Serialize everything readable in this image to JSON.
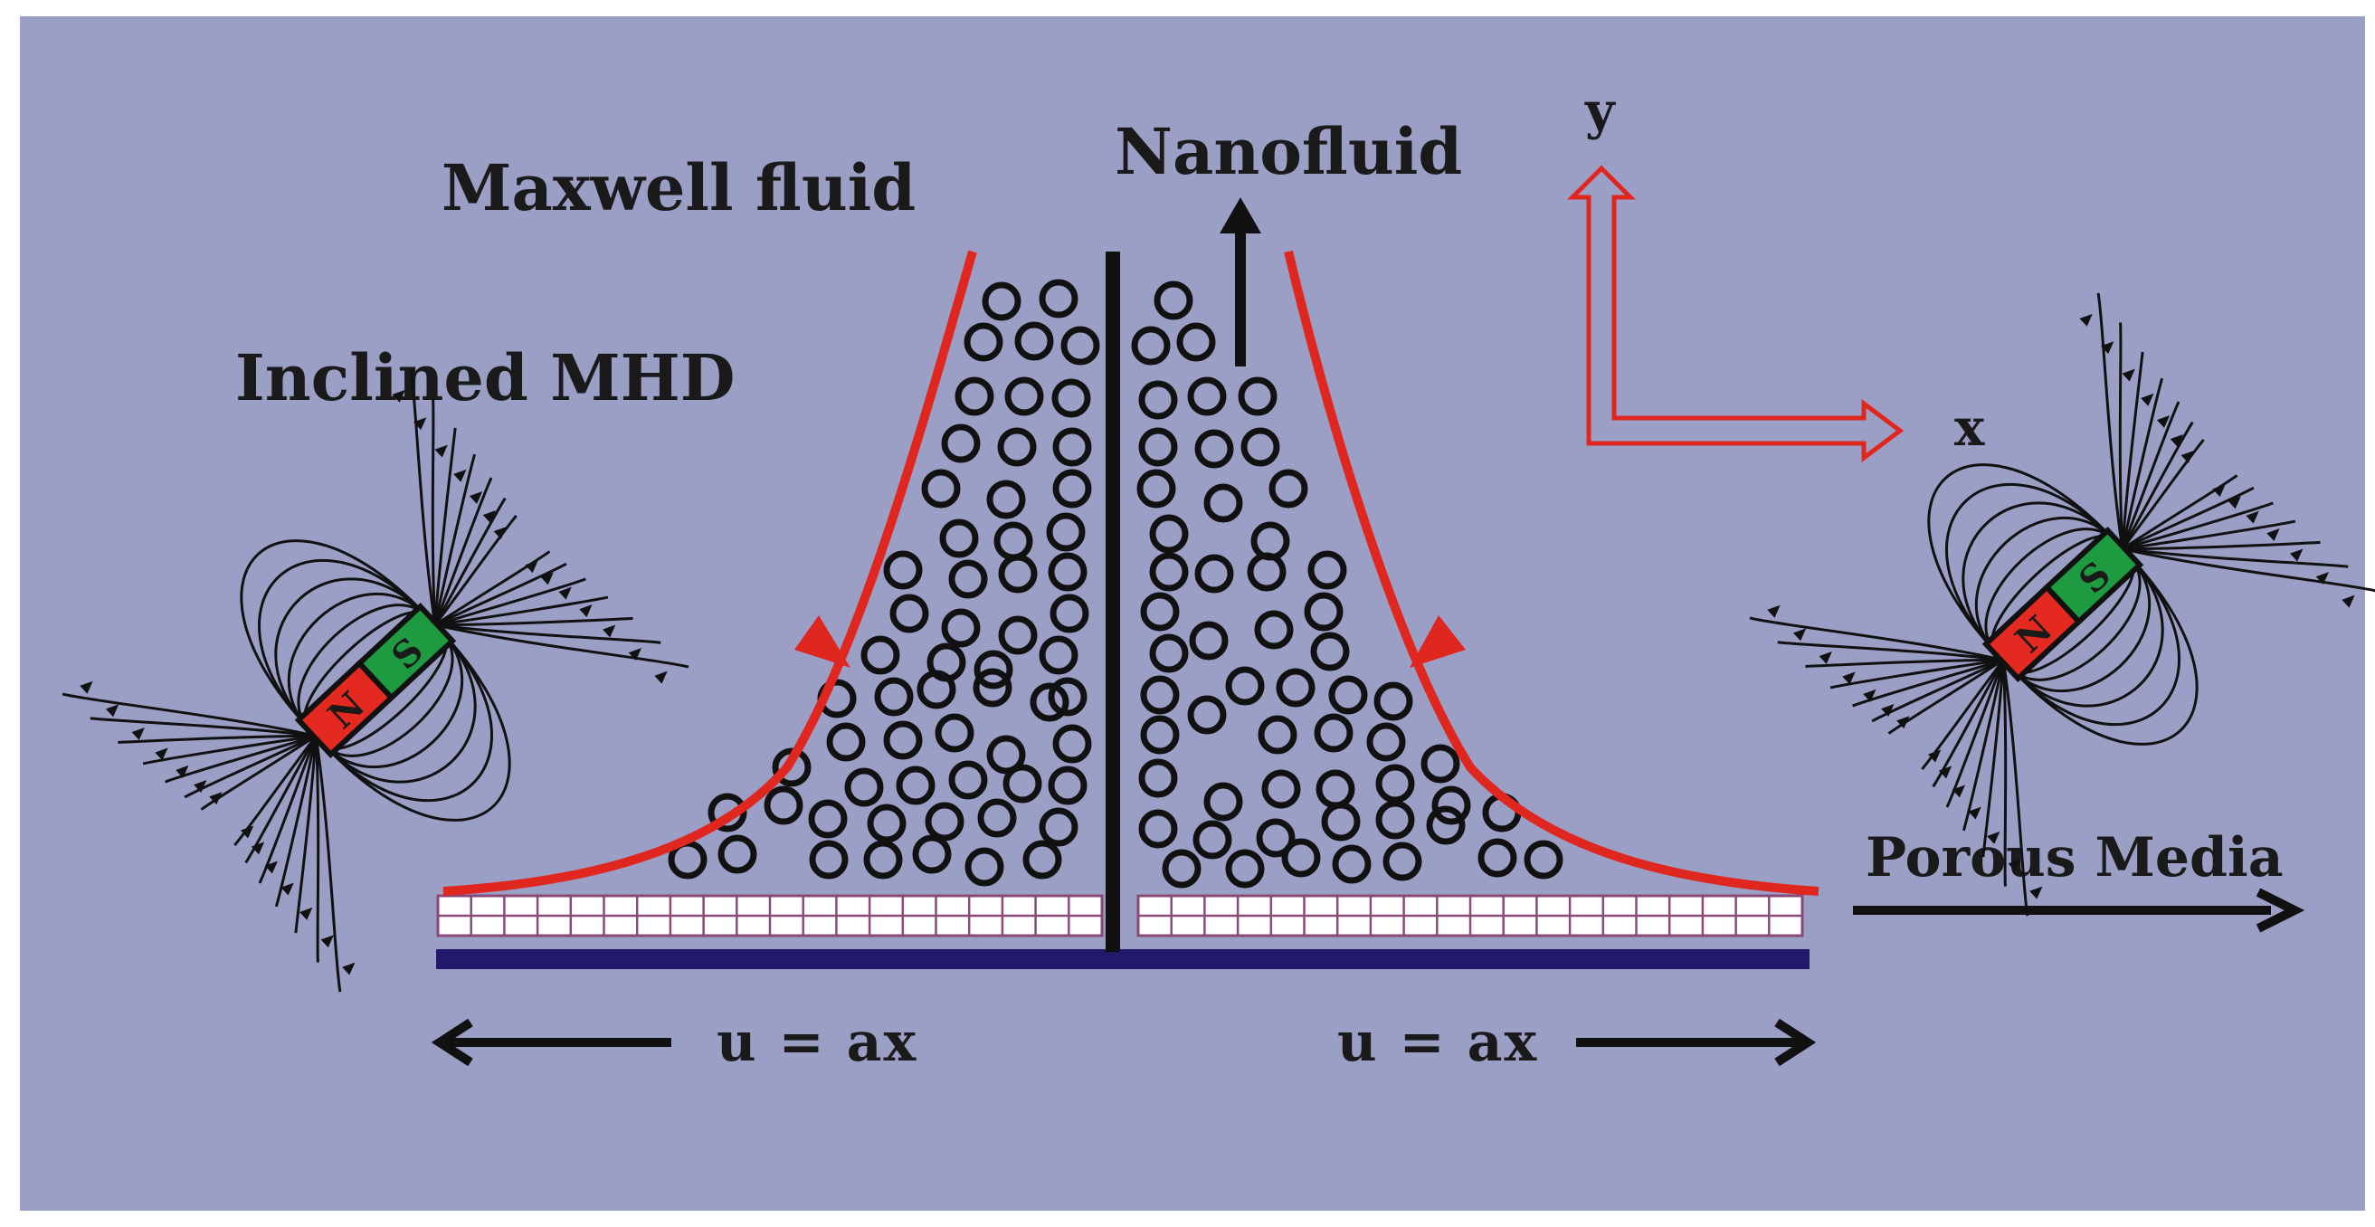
{
  "labels": {
    "maxwell": "Maxwell fluid",
    "nanofluid": "Nanofluid",
    "mhd": "Inclined MHD",
    "porous": "Porous Media",
    "u_left": "u = ax",
    "u_right": "u = ax",
    "axis_x": "x",
    "axis_y": "y"
  },
  "magnet": {
    "north": "N",
    "south": "S"
  },
  "colors": {
    "background": "#9b9fc6",
    "flow_curve": "#e0271f",
    "axes": "#e0271f",
    "plate": "#22196b",
    "porous_border": "#8a4a78",
    "north_pole": "#e42a20",
    "south_pole": "#1e9a40",
    "ink": "#111111"
  },
  "icons": {
    "left_magnet": "bar-magnet-icon",
    "right_magnet": "bar-magnet-icon"
  }
}
